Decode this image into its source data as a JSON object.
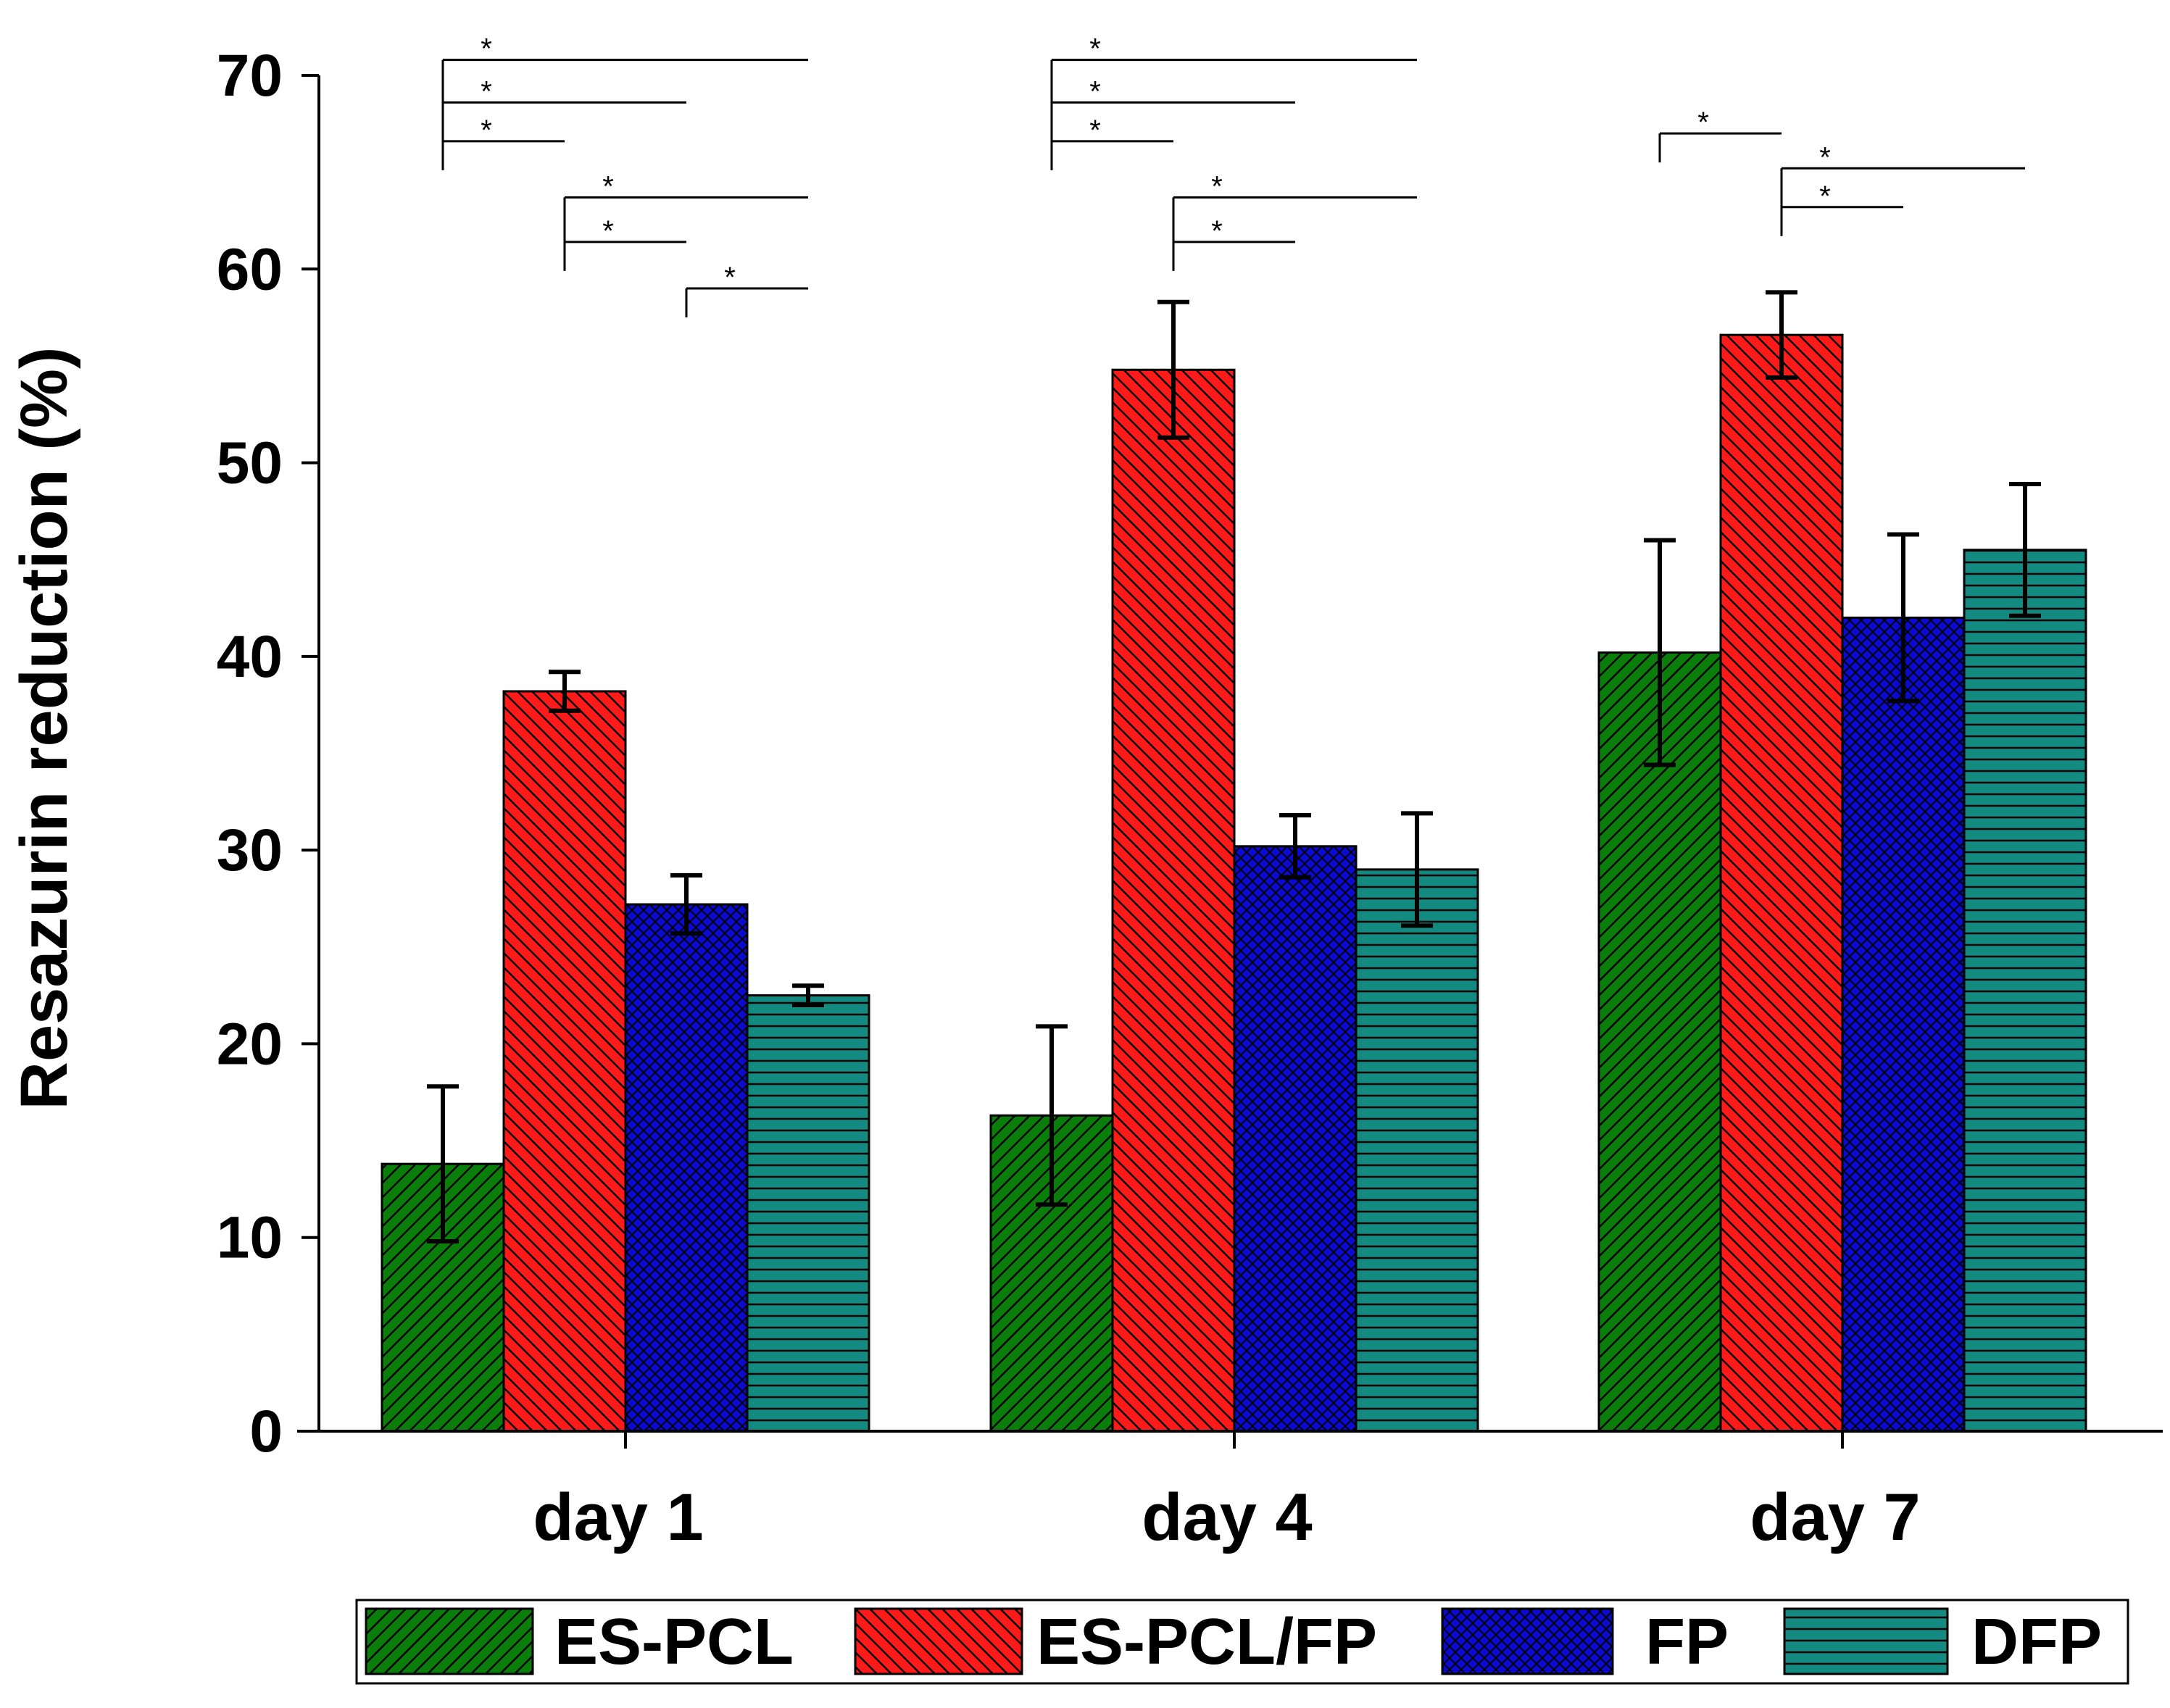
{
  "chart_data": {
    "type": "bar",
    "title": "",
    "xlabel": "",
    "ylabel": "Resazurin reduction (%)",
    "ylim": [
      0,
      70
    ],
    "yticks": [
      0,
      10,
      20,
      30,
      40,
      50,
      60,
      70
    ],
    "categories": [
      "day 1",
      "day 4",
      "day 7"
    ],
    "series": [
      {
        "name": "ES-PCL",
        "color": "#0a7d0a",
        "pattern": "diag-up",
        "values": [
          13.8,
          16.3,
          40.2
        ],
        "errors": [
          4.0,
          4.6,
          5.8
        ]
      },
      {
        "name": "ES-PCL/FP",
        "color": "#ff1a1a",
        "pattern": "diag-down",
        "values": [
          38.2,
          54.8,
          56.6
        ],
        "errors": [
          1.0,
          3.5,
          2.2
        ]
      },
      {
        "name": "FP",
        "color": "#0a0ad2",
        "pattern": "cross",
        "values": [
          27.2,
          30.2,
          42.0
        ],
        "errors": [
          1.5,
          1.6,
          4.3
        ]
      },
      {
        "name": "DFP",
        "color": "#138a80",
        "pattern": "horizontal",
        "values": [
          22.5,
          29.0,
          45.5
        ],
        "errors": [
          0.5,
          2.9,
          3.4
        ]
      }
    ],
    "significance": [
      {
        "category": 0,
        "from": 0,
        "to": 3,
        "label": "*",
        "level": 70.8
      },
      {
        "category": 0,
        "from": 0,
        "to": 2,
        "label": "*",
        "level": 68.6
      },
      {
        "category": 0,
        "from": 0,
        "to": 1,
        "label": "*",
        "level": 66.6
      },
      {
        "category": 0,
        "from": 1,
        "to": 3,
        "label": "*",
        "level": 63.7
      },
      {
        "category": 0,
        "from": 1,
        "to": 2,
        "label": "*",
        "level": 61.4
      },
      {
        "category": 0,
        "from": 2,
        "to": 3,
        "label": "*",
        "level": 59.0
      },
      {
        "category": 1,
        "from": 0,
        "to": 3,
        "label": "*",
        "level": 70.8
      },
      {
        "category": 1,
        "from": 0,
        "to": 2,
        "label": "*",
        "level": 68.6
      },
      {
        "category": 1,
        "from": 0,
        "to": 1,
        "label": "*",
        "level": 66.6
      },
      {
        "category": 1,
        "from": 1,
        "to": 3,
        "label": "*",
        "level": 63.7
      },
      {
        "category": 1,
        "from": 1,
        "to": 2,
        "label": "*",
        "level": 61.4
      },
      {
        "category": 2,
        "from": 0,
        "to": 1,
        "label": "*",
        "level": 67.0
      },
      {
        "category": 2,
        "from": 1,
        "to": 3,
        "label": "*",
        "level": 65.2
      },
      {
        "category": 2,
        "from": 1,
        "to": 2,
        "label": "*",
        "level": 63.2
      }
    ],
    "legend": {
      "position": "bottom",
      "entries": [
        "ES-PCL",
        "ES-PCL/FP",
        "FP",
        "DFP"
      ]
    },
    "grid": false
  }
}
